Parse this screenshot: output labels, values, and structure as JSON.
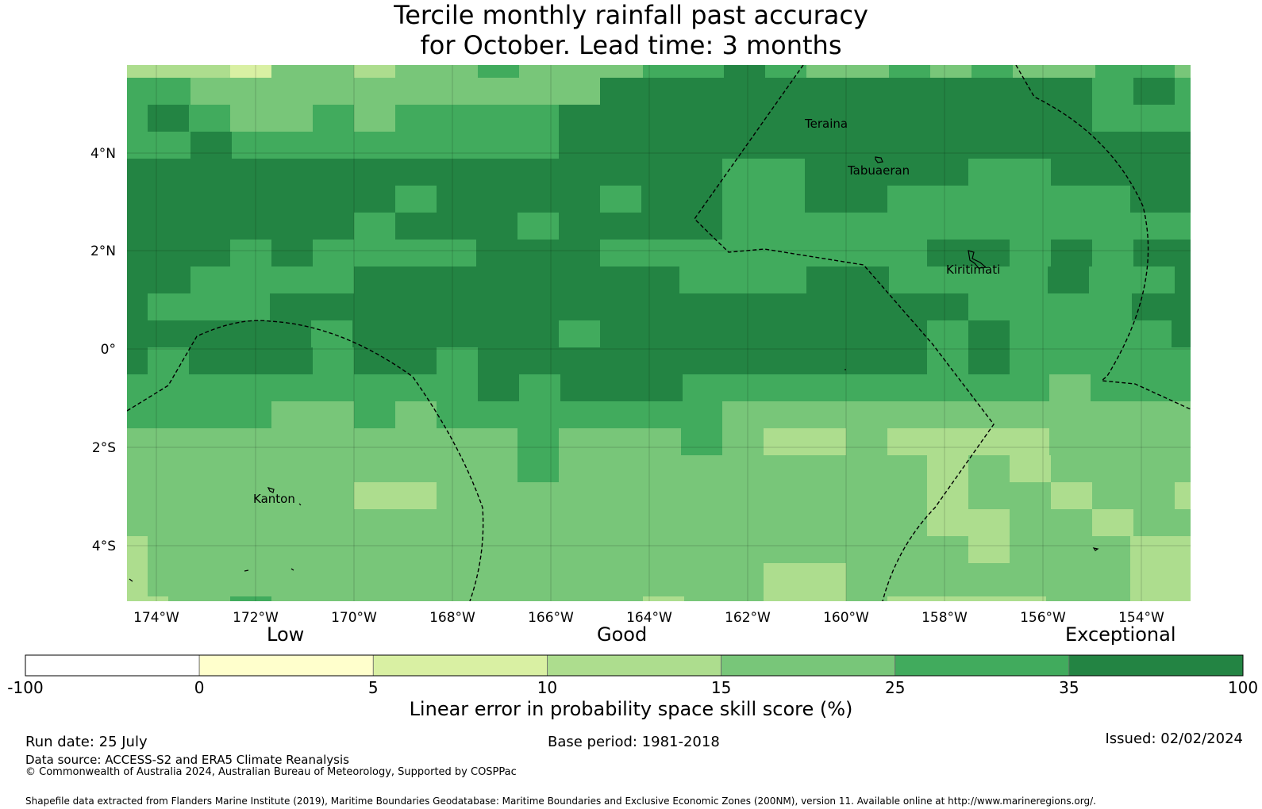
{
  "title": {
    "line1": "Tercile monthly rainfall past accuracy",
    "line2": "for October. Lead time: 3 months"
  },
  "map": {
    "lon_range": [
      -174.75,
      -152.9
    ],
    "lat_range": [
      -5.15,
      5.75
    ],
    "x_ticks": [
      "174°W",
      "172°W",
      "170°W",
      "168°W",
      "166°W",
      "164°W",
      "162°W",
      "160°W",
      "158°W",
      "156°W",
      "154°W"
    ],
    "y_ticks": [
      "4°N",
      "2°N",
      "0°",
      "2°S",
      "4°S"
    ],
    "places": [
      "Teraina",
      "Tabuaeran",
      "Kiritimati",
      "Kanton"
    ],
    "category_labels": [
      "Low",
      "Good",
      "Exceptional"
    ]
  },
  "colorbar": {
    "ticks": [
      "-100",
      "0",
      "5",
      "10",
      "15",
      "25",
      "35",
      "100"
    ],
    "colors": [
      "#ffffff",
      "#ffffcc",
      "#d9f0a3",
      "#addd8e",
      "#78c679",
      "#41ab5d",
      "#238443"
    ],
    "label": "Linear error in probability space skill score (%)"
  },
  "footer": {
    "run_date": "Run date: 25 July",
    "base_period": "Base period: 1981-2018",
    "issued": "Issued: 02/02/2024",
    "data_source": "Data source: ACCESS-S2 and ERA5 Climate Reanalysis",
    "copyright": "© Commonwealth of Australia 2024, Australian Bureau of Meteorology, Supported by COSPPac",
    "shapefile": "Shapefile data extracted from Flanders Marine Institute (2019), Maritime Boundaries Geodatabase: Maritime Boundaries and Exclusive Economic Zones (200NM), version 11. Available online at http://www.marineregions.org/."
  }
}
